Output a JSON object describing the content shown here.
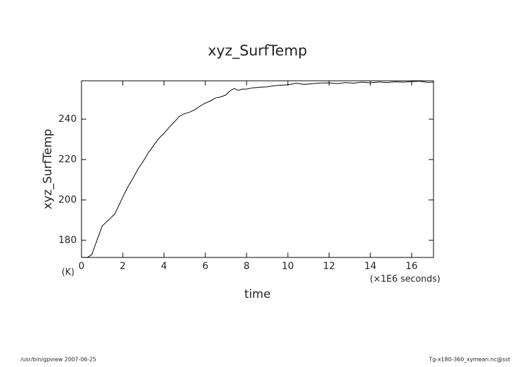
{
  "chart_data": {
    "type": "line",
    "title": "xyz_SurfTemp",
    "y_label": "xyz_SurfTemp",
    "x_label": "time",
    "y_unit_label": "(K)",
    "x_unit_label": "(×1E6 seconds)",
    "footer_left": "/usr/bin/gpview   2007-06-25",
    "footer_right": "Tg-x180-360_xymean.nc@sst",
    "color": "#000000",
    "x": [
      0,
      0.3,
      0.5,
      0.75,
      1.0,
      1.3,
      1.6,
      1.8,
      2.0,
      2.25,
      2.5,
      2.75,
      3.0,
      3.25,
      3.5,
      3.75,
      4.0,
      4.25,
      4.5,
      4.75,
      5.0,
      5.25,
      5.5,
      5.75,
      6.0,
      6.25,
      6.5,
      6.75,
      7.0,
      7.2,
      7.4,
      7.6,
      7.8,
      8.0,
      8.3,
      8.6,
      9.0,
      9.3,
      9.6,
      10.0,
      10.4,
      10.8,
      11.2,
      11.6,
      12.0,
      12.4,
      12.8,
      13.2,
      13.6,
      14.0,
      14.4,
      14.8,
      15.2,
      15.6,
      16.0,
      16.4,
      16.8,
      17.06
    ],
    "values": [
      171.5,
      171.6,
      172.9,
      180,
      187,
      190,
      192.9,
      197,
      201.4,
      206.5,
      210.8,
      215.5,
      219.3,
      223.5,
      227,
      230.5,
      233,
      236,
      238.6,
      241.5,
      242.7,
      243.5,
      244.7,
      246.5,
      248,
      249,
      250.5,
      251,
      252,
      254,
      255.2,
      254.3,
      254.9,
      254.9,
      255.5,
      255.8,
      256,
      256.5,
      256.8,
      257,
      257.8,
      257.2,
      257.6,
      257.9,
      258,
      257.6,
      258.1,
      257.8,
      258.3,
      258,
      258.4,
      258.1,
      258.5,
      258.3,
      258.6,
      258.8,
      258.2,
      258.3
    ],
    "xlim": [
      0,
      17.06
    ],
    "ylim": [
      171.5,
      259
    ],
    "xticks": [
      0,
      2,
      4,
      6,
      8,
      10,
      12,
      14,
      16
    ],
    "yticks": [
      180,
      200,
      220,
      240
    ]
  }
}
